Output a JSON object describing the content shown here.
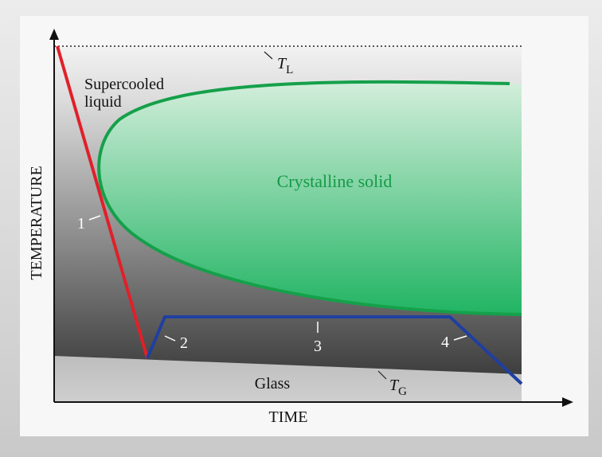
{
  "axes": {
    "x_label": "TIME",
    "y_label": "TEMPERATURE"
  },
  "regions": {
    "supercooled": [
      "Supercooled",
      "liquid"
    ],
    "crystalline": "Crystalline solid",
    "glass": "Glass"
  },
  "temperatures": {
    "liquid": {
      "symbol": "T",
      "subscript": "L"
    },
    "glass": {
      "symbol": "T",
      "subscript": "G"
    }
  },
  "paths": [
    "1",
    "2",
    "3",
    "4"
  ]
}
